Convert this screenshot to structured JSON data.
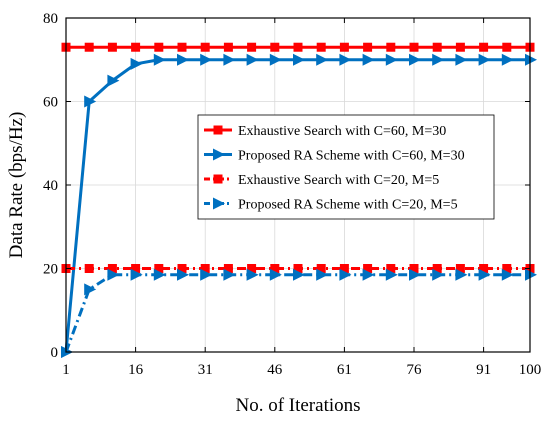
{
  "chart_data": {
    "type": "line",
    "xlabel": "No. of Iterations",
    "ylabel": "Data Rate (bps/Hz)",
    "x_tick_labels": [
      "1",
      "16",
      "31",
      "46",
      "61",
      "76",
      "91",
      "100"
    ],
    "x_tick_positions": [
      1,
      4,
      7,
      10,
      13,
      16,
      19,
      21
    ],
    "xlim": [
      1,
      21
    ],
    "y_ticks": [
      0,
      20,
      40,
      60,
      80
    ],
    "ylim": [
      0,
      80
    ],
    "grid": true,
    "legend_position": "center-right",
    "x": [
      1,
      2,
      3,
      4,
      5,
      6,
      7,
      8,
      9,
      10,
      11,
      12,
      13,
      14,
      15,
      16,
      17,
      18,
      19,
      20,
      21
    ],
    "series": [
      {
        "name": "Exhaustive Search with C=60, M=30",
        "color": "#ff0000",
        "line_style": "solid",
        "marker": "square",
        "values": [
          73,
          73,
          73,
          73,
          73,
          73,
          73,
          73,
          73,
          73,
          73,
          73,
          73,
          73,
          73,
          73,
          73,
          73,
          73,
          73,
          73
        ]
      },
      {
        "name": "Proposed RA Scheme with C=60, M=30",
        "color": "#0070c0",
        "line_style": "solid",
        "marker": "triangle-right",
        "values": [
          0,
          60,
          65,
          69,
          70,
          70,
          70,
          70,
          70,
          70,
          70,
          70,
          70,
          70,
          70,
          70,
          70,
          70,
          70,
          70,
          70
        ]
      },
      {
        "name": "Exhaustive Search with C=20, M=5",
        "color": "#ff0000",
        "line_style": "dashdot",
        "marker": "square",
        "values": [
          20,
          20,
          20,
          20,
          20,
          20,
          20,
          20,
          20,
          20,
          20,
          20,
          20,
          20,
          20,
          20,
          20,
          20,
          20,
          20,
          20
        ]
      },
      {
        "name": "Proposed RA Scheme with C=20, M=5",
        "color": "#0070c0",
        "line_style": "dashdot",
        "marker": "triangle-right",
        "values": [
          0,
          15,
          18.5,
          18.5,
          18.5,
          18.5,
          18.5,
          18.5,
          18.5,
          18.5,
          18.5,
          18.5,
          18.5,
          18.5,
          18.5,
          18.5,
          18.5,
          18.5,
          18.5,
          18.5,
          18.5
        ]
      }
    ]
  }
}
